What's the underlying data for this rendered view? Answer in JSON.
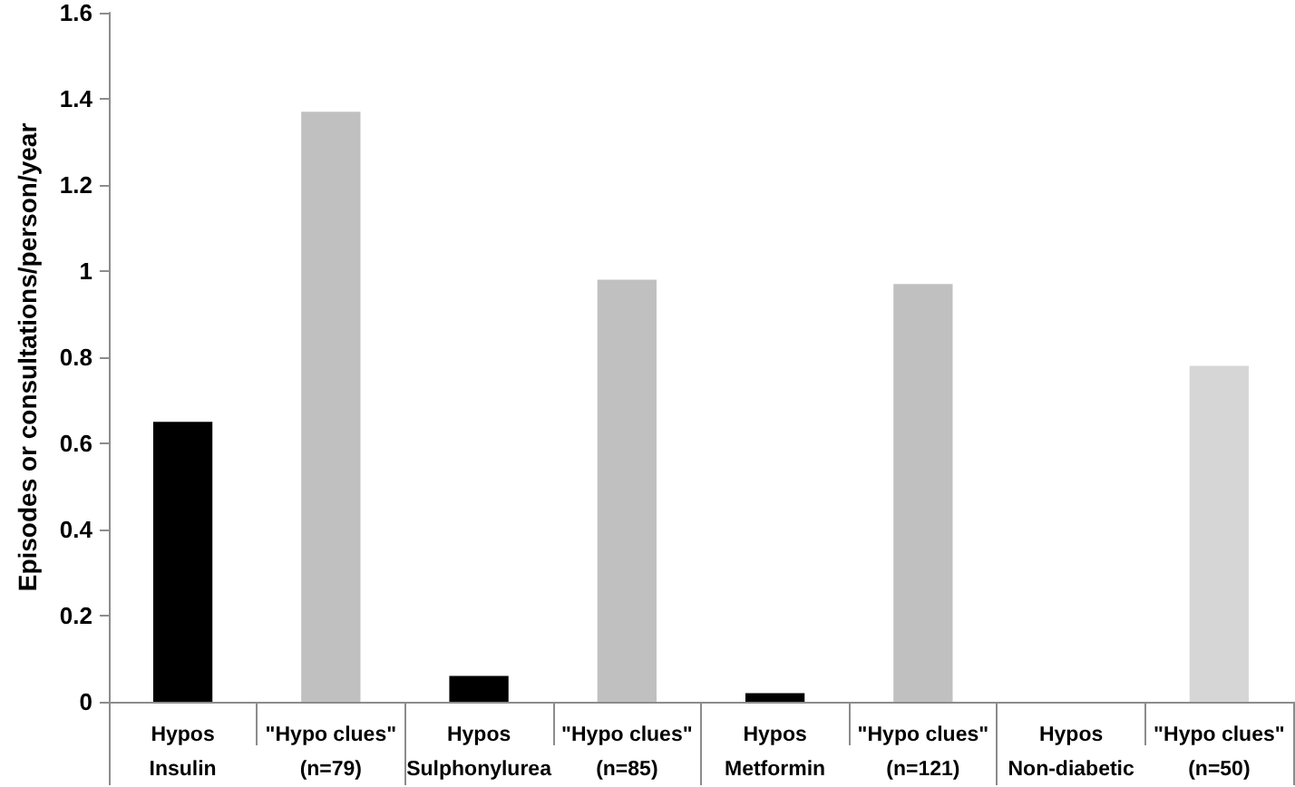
{
  "chart_data": {
    "type": "bar",
    "ylabel": "Episodes or consultations/person/year",
    "categories": [
      "Hypos\nInsulin",
      "\"Hypo clues\"\n(n=79)",
      "Hypos\nSulphonylurea",
      "\"Hypo clues\"\n(n=85)",
      "Hypos\nMetformin",
      "\"Hypo clues\"\n(n=121)",
      "Hypos\nNon-diabetic",
      "\"Hypo clues\"\n(n=50)"
    ],
    "values": [
      0.65,
      1.37,
      0.06,
      0.98,
      0.02,
      0.97,
      null,
      0.78
    ],
    "colors": [
      "#000000",
      "#c0c0c0",
      "#000000",
      "#c0c0c0",
      "#000000",
      "#c0c0c0",
      null,
      "#d6d6d6"
    ],
    "ylim": [
      0,
      1.6
    ],
    "yticks": [
      0,
      0.2,
      0.4,
      0.6,
      0.8,
      1,
      1.2,
      1.4,
      1.6
    ],
    "grid": false
  }
}
